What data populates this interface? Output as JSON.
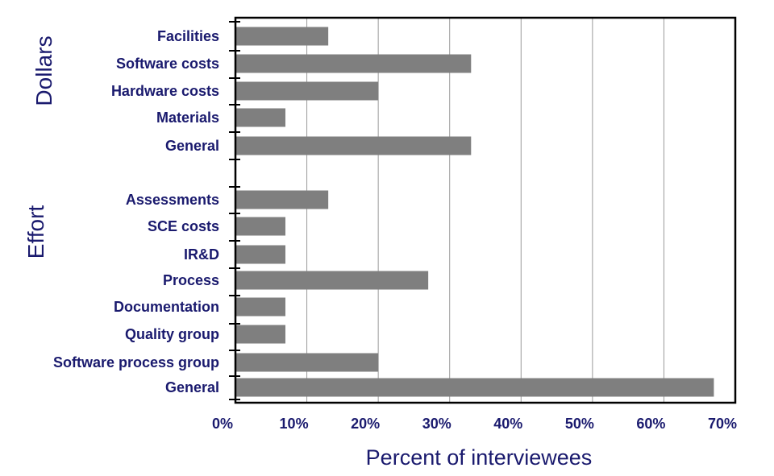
{
  "chart_data": {
    "type": "bar",
    "orientation": "horizontal",
    "xlabel": "Percent of interviewees",
    "xlim": [
      0,
      70
    ],
    "x_ticks": [
      "0%",
      "10%",
      "20%",
      "30%",
      "40%",
      "50%",
      "60%",
      "70%"
    ],
    "grid": true,
    "bar_color": "#7f7f7f",
    "groups": [
      {
        "label": "Dollars",
        "categories": [
          "Facilities",
          "Software costs",
          "Hardware costs",
          "Materials",
          "General"
        ],
        "values": [
          13,
          33,
          20,
          7,
          33
        ]
      },
      {
        "label": "Effort",
        "categories": [
          "Assessments",
          "SCE costs",
          "IR&D",
          "Process",
          "Documentation",
          "Quality group",
          "Software process group",
          "General"
        ],
        "values": [
          13,
          7,
          7,
          27,
          7,
          7,
          20,
          67
        ]
      }
    ]
  }
}
